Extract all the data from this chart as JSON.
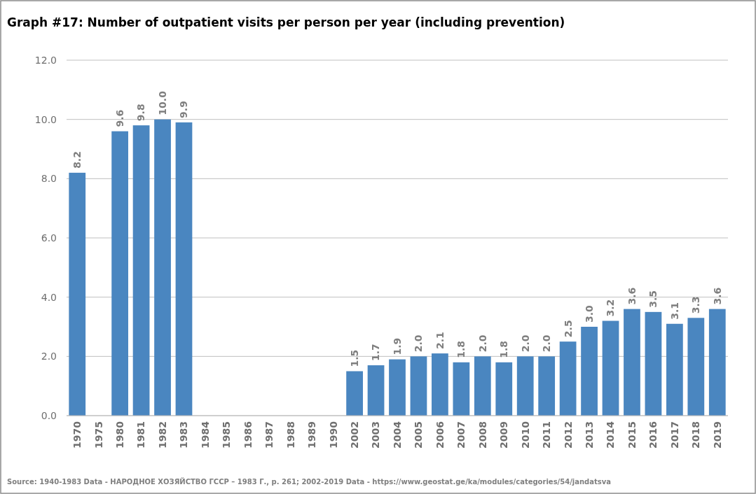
{
  "chart_data": {
    "type": "bar",
    "title": "Graph #17: Number of outpatient visits per person per year (including prevention)",
    "categories": [
      "1970",
      "1975",
      "1980",
      "1981",
      "1982",
      "1983",
      "1984",
      "1985",
      "1986",
      "1987",
      "1988",
      "1989",
      "1990",
      "2002",
      "2003",
      "2004",
      "2005",
      "2006",
      "2007",
      "2008",
      "2009",
      "2010",
      "2011",
      "2012",
      "2013",
      "2014",
      "2015",
      "2016",
      "2017",
      "2018",
      "2019"
    ],
    "values": [
      8.2,
      null,
      9.6,
      9.8,
      10.0,
      9.9,
      null,
      null,
      null,
      null,
      null,
      null,
      null,
      1.5,
      1.7,
      1.9,
      2.0,
      2.1,
      1.8,
      2.0,
      1.8,
      2.0,
      2.0,
      2.5,
      3.0,
      3.2,
      3.6,
      3.5,
      3.1,
      3.3,
      3.6
    ],
    "value_labels": [
      "8.2",
      null,
      "9.6",
      "9.8",
      "10.0",
      "9.9",
      null,
      null,
      null,
      null,
      null,
      null,
      null,
      "1.5",
      "1.7",
      "1.9",
      "2.0",
      "2.1",
      "1.8",
      "2.0",
      "1.8",
      "2.0",
      "2.0",
      "2.5",
      "3.0",
      "3.2",
      "3.6",
      "3.5",
      "3.1",
      "3.3",
      "3.6"
    ],
    "color": "#4a86c0",
    "ylim": [
      0,
      12
    ],
    "yticks": [
      {
        "value": 0,
        "label": "0.0"
      },
      {
        "value": 2,
        "label": "2.0"
      },
      {
        "value": 4,
        "label": "4.0"
      },
      {
        "value": 6,
        "label": "6.0"
      },
      {
        "value": 8,
        "label": "8.0"
      },
      {
        "value": 10,
        "label": "10.0"
      },
      {
        "value": 12,
        "label": "12.0"
      }
    ],
    "grid": "y",
    "annotations": [
      "Source: 1940-1983 Data - НАРОДНОЕ ХОЗЯЙСТВО ГССР – 1983 Г., p. 261; 2002-2019 Data - https://www.geostat.ge/ka/modules/categories/54/jandatsva"
    ]
  }
}
